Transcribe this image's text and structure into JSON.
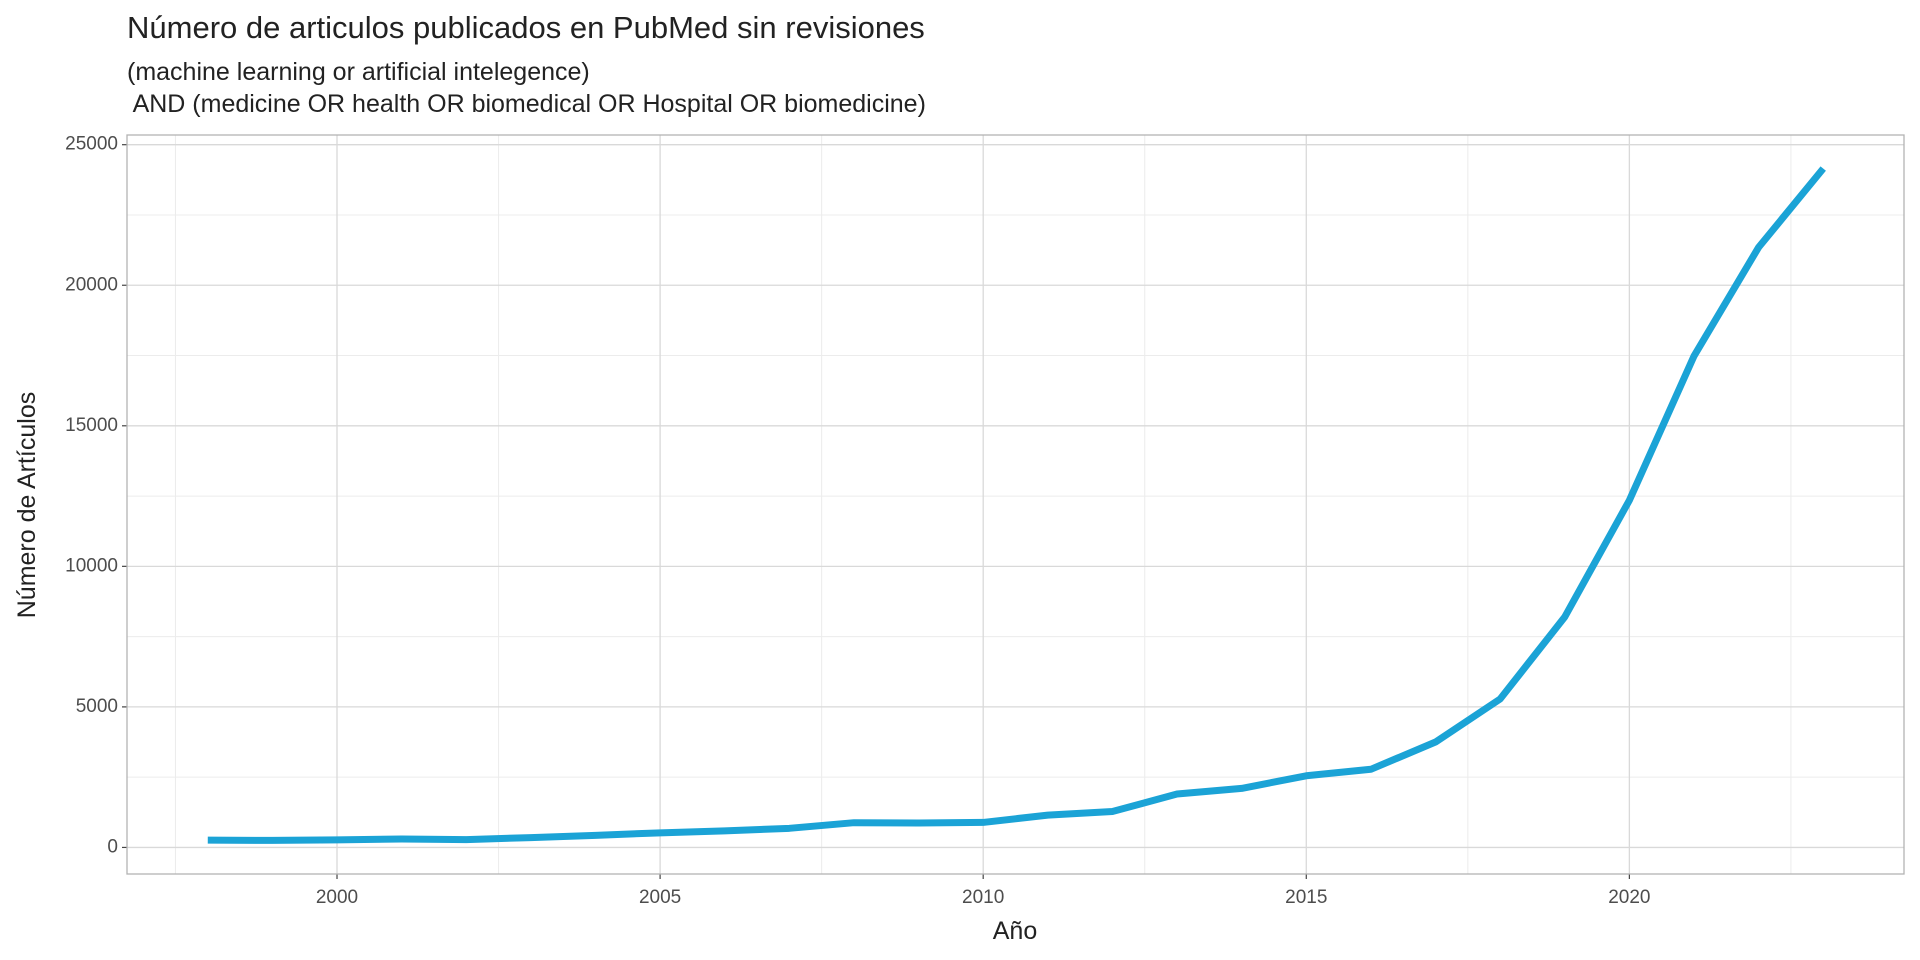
{
  "chart_data": {
    "type": "line",
    "title": "Número de articulos publicados en PubMed sin revisiones",
    "subtitle": [
      "(machine learning or artificial intelegence)",
      " AND (medicine OR health OR biomedical OR Hospital OR biomedicine)"
    ],
    "x_label": "Año",
    "y_label": "Número de Artículos",
    "x": [
      1998,
      1999,
      2000,
      2001,
      2002,
      2003,
      2004,
      2005,
      2006,
      2007,
      2008,
      2009,
      2010,
      2011,
      2012,
      2013,
      2014,
      2015,
      2016,
      2017,
      2018,
      2019,
      2020,
      2021,
      2022,
      2023
    ],
    "values": [
      260,
      250,
      270,
      300,
      280,
      350,
      430,
      520,
      590,
      680,
      880,
      870,
      890,
      1150,
      1280,
      1900,
      2100,
      2550,
      2780,
      3750,
      5280,
      8200,
      12350,
      17480,
      21350,
      24150
    ],
    "color": "#1ba3d6",
    "xlim": [
      1996.75,
      2024.25
    ],
    "ylim": [
      -945,
      25345
    ],
    "xticks": [
      2000,
      2005,
      2010,
      2015,
      2020
    ],
    "yticks": [
      0,
      5000,
      10000,
      15000,
      20000,
      25000
    ],
    "grid": true
  }
}
